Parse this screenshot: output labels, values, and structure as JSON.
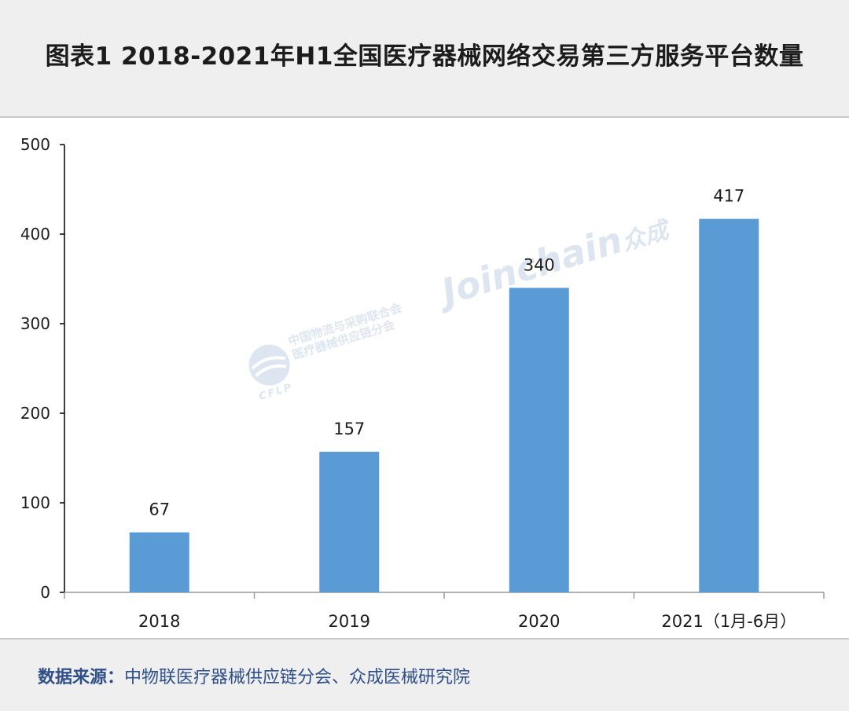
{
  "title": "图表1  2018-2021年H1全国医疗器械网络交易第三方服务平台数量",
  "source": {
    "label": "数据来源：",
    "text": "中物联医疗器械供应链分会、众成医械研究院"
  },
  "watermark": {
    "org_line1": "中国物流与采购联合会",
    "org_line2": "医疗器械供应链分会",
    "cflp": "CFLP",
    "brand": "Joinchain",
    "brand_cn": "众成"
  },
  "colors": {
    "bar": "#5b9bd5",
    "axis": "#000000",
    "text": "#1c1c1c",
    "source": "#2f4f8a"
  },
  "chart_data": {
    "type": "bar",
    "title": "图表1  2018-2021年H1全国医疗器械网络交易第三方服务平台数量",
    "categories": [
      "2018",
      "2019",
      "2020",
      "2021（1月-6月）"
    ],
    "values": [
      67,
      157,
      340,
      417
    ],
    "data_labels": [
      "67",
      "157",
      "340",
      "417"
    ],
    "ylim": [
      0,
      500
    ],
    "yticks": [
      0,
      100,
      200,
      300,
      400,
      500
    ],
    "xlabel": "",
    "ylabel": "",
    "grid": false,
    "legend": "none"
  }
}
